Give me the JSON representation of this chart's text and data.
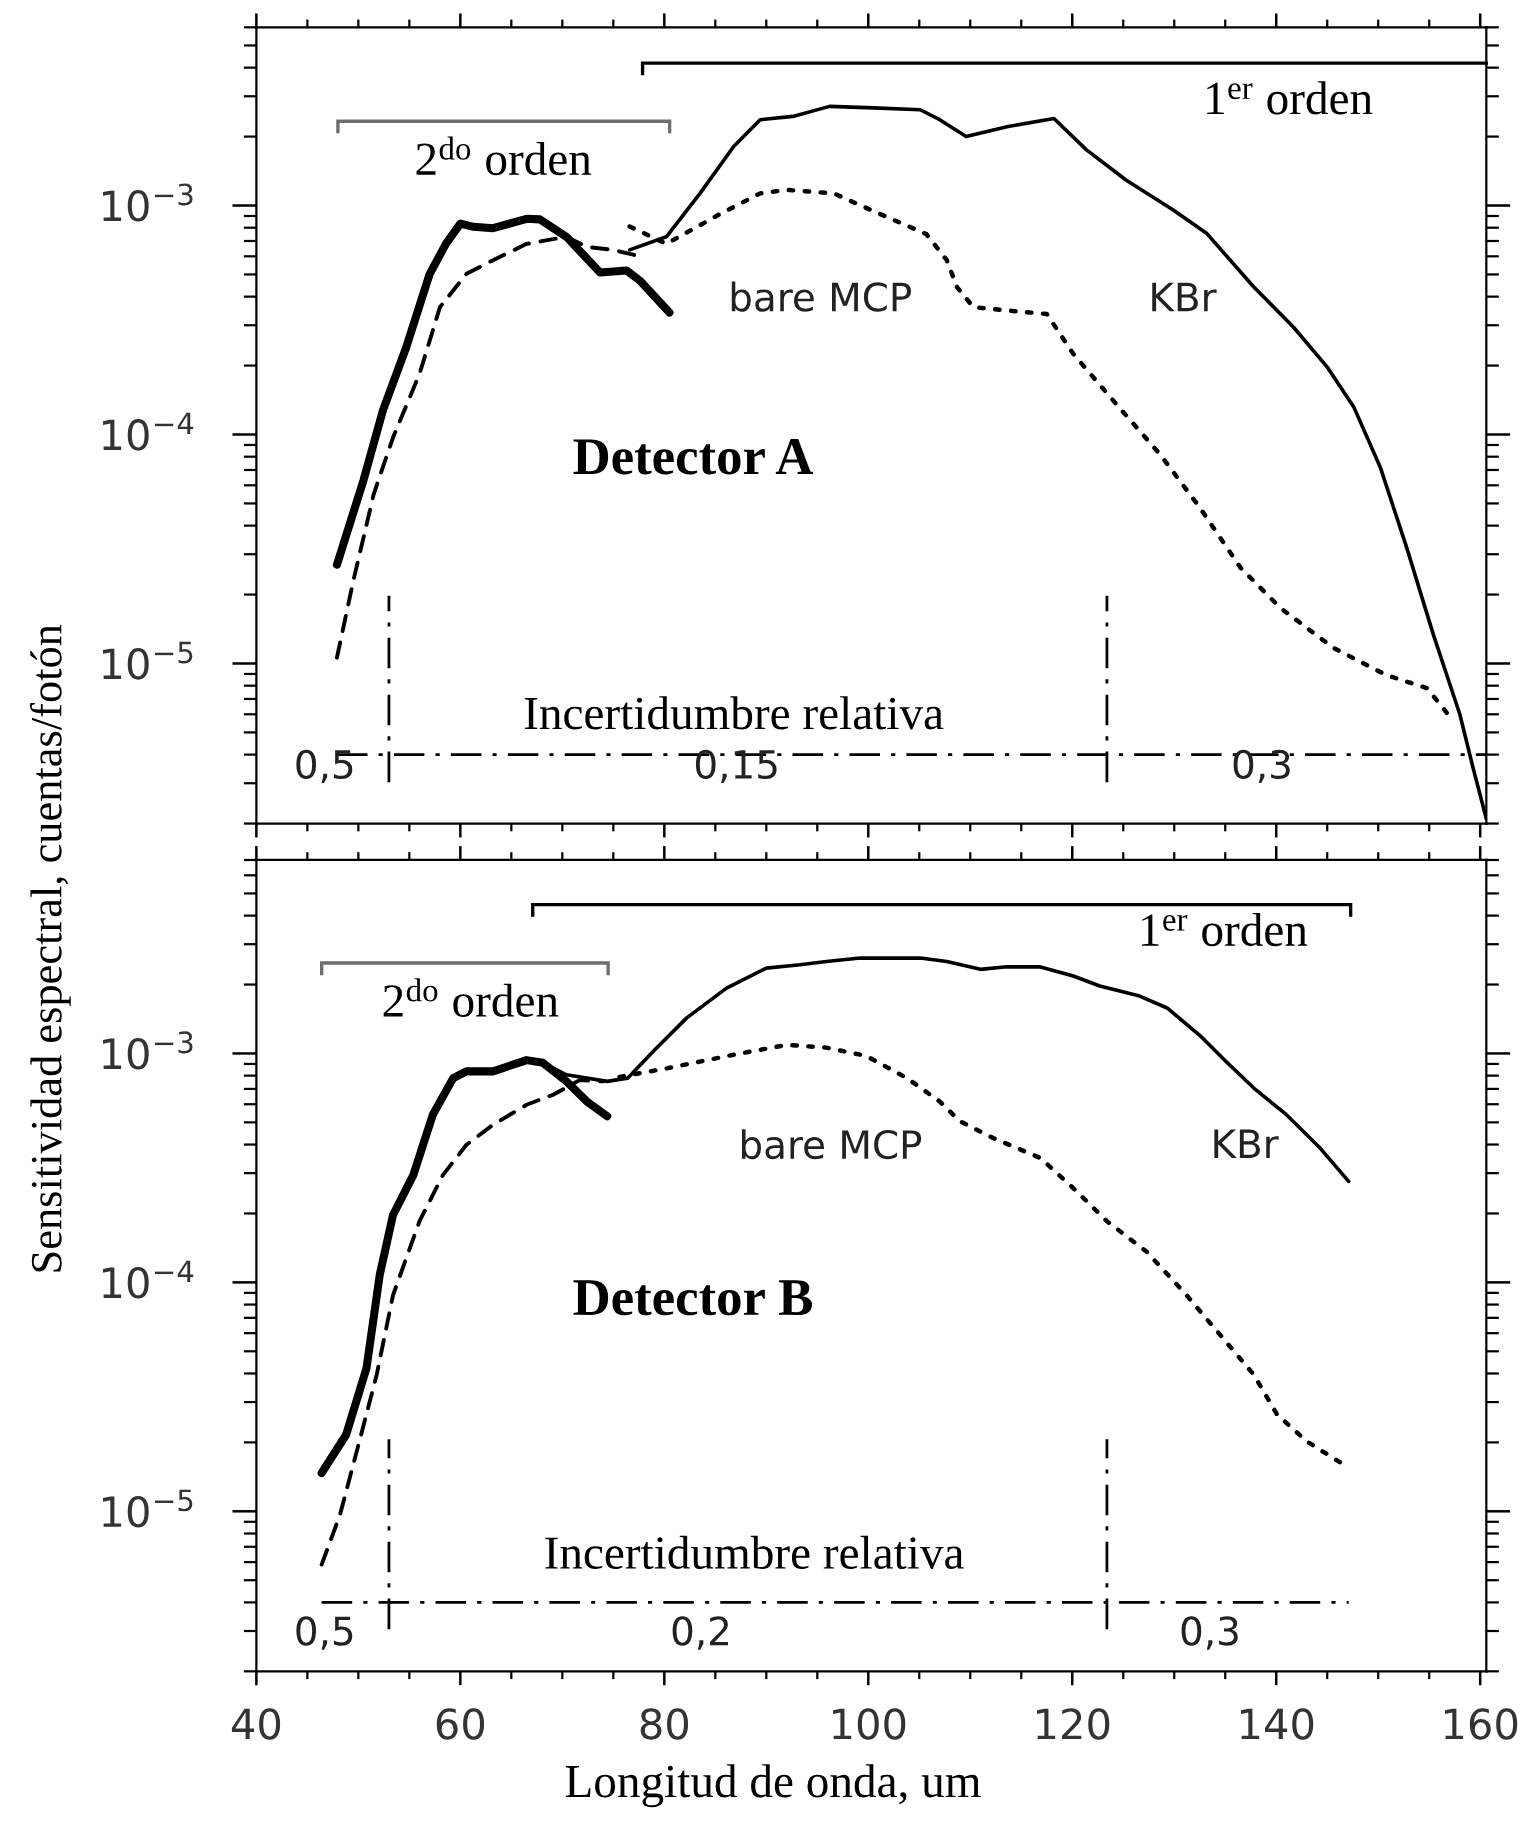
{
  "chart_data": [
    {
      "type": "line",
      "title": "Detector A",
      "log": true,
      "xlim": [
        40,
        160.6
      ],
      "ylim": [
        2e-06,
        0.006
      ],
      "xticks": [
        40,
        60,
        80,
        100,
        120,
        140,
        160
      ],
      "yticks": [
        {
          "value": 1e-05,
          "label": "10$^{−5}$"
        },
        {
          "value": 0.0001,
          "label": "10$^{−4}$"
        },
        {
          "value": 0.001,
          "label": "10$^{−3}$"
        }
      ],
      "tick_labels": "y",
      "series": [
        {
          "color": "#000000",
          "line_style": "solid",
          "x": [
            76.6,
            80.2,
            83.5,
            86.8,
            89.4,
            92.6,
            96.2,
            100.5,
            105.1,
            107.0,
            109.6,
            113.6,
            118.2,
            121.4,
            125.3,
            129.9,
            133.2,
            137.8,
            141.7,
            145.0,
            147.6,
            150.2,
            152.8,
            155.4,
            158.0,
            159.3,
            160.6
          ],
          "values": [
            0.00064,
            0.00073,
            0.00113,
            0.00181,
            0.00237,
            0.00245,
            0.00271,
            0.00267,
            0.00262,
            0.00237,
            0.002,
            0.00221,
            0.0024,
            0.00175,
            0.00129,
            0.000955,
            0.000754,
            0.000441,
            0.000294,
            0.000197,
            0.000132,
            7.2e-05,
            3.2e-05,
            1.34e-05,
            6e-06,
            3.5e-06,
            2.1e-06
          ]
        },
        {
          "color": "#000000",
          "line_style": "solid",
          "x": [
            47.9,
            50.5,
            52.4,
            54.7,
            57.0,
            58.6,
            60.0,
            61.3,
            63.2,
            66.5,
            67.8,
            70.4,
            73.7,
            76.3,
            77.6,
            80.5
          ],
          "values": [
            2.7e-05,
            6.3e-05,
            0.000127,
            0.000241,
            0.000503,
            0.000682,
            0.000834,
            0.000807,
            0.000796,
            0.000875,
            0.00087,
            0.00073,
            0.00051,
            0.00052,
            0.00047,
            0.000341
          ]
        },
        {
          "color": "#000000",
          "line_style": "dotted",
          "x": [
            76.6,
            80.2,
            85.5,
            89.4,
            92.0,
            96.6,
            101.1,
            105.7,
            107.7,
            108.7,
            110.3,
            113.6,
            117.5,
            120.1,
            124.0,
            128.6,
            132.5,
            136.5,
            140.4,
            145.6,
            150.8,
            154.8,
            157.1
          ],
          "values": [
            0.00081,
            0.00068,
            0.00092,
            0.00113,
            0.00117,
            0.00113,
            0.00092,
            0.00075,
            0.000577,
            0.00044,
            0.00036,
            0.000348,
            0.000336,
            0.000225,
            0.000141,
            8.2e-05,
            4.8e-05,
            2.62e-05,
            1.75e-05,
            1.17e-05,
            8.9e-06,
            7.8e-06,
            5.8e-06
          ]
        },
        {
          "color": "#000000",
          "line_style": "dashed",
          "x": [
            47.9,
            49.5,
            51.5,
            53.4,
            56.0,
            58.0,
            60.6,
            63.2,
            66.5,
            70.4,
            72.4,
            75.0,
            77.6
          ],
          "values": [
            1.06e-05,
            2.29e-05,
            5.48e-05,
            9.7e-05,
            0.000184,
            0.00036,
            0.000503,
            0.000577,
            0.00068,
            0.00073,
            0.00066,
            0.00064,
            0.0006
          ]
        }
      ],
      "ref_lines": [
        {
          "axis": "x",
          "value": 53,
          "line_style": "dashdot"
        },
        {
          "axis": "x",
          "value": 123.4,
          "line_style": "dashdot"
        },
        {
          "axis": "y",
          "value": 4e-06,
          "line_style": "dashdot"
        }
      ],
      "annotations": [
        "2$^{do}$ orden",
        "1$^{er}$ orden",
        "bare MCP",
        "KBr",
        "Incertidumbre relativa",
        "0,5",
        "0,15",
        "0,3"
      ]
    },
    {
      "type": "line",
      "title": "Detector B",
      "xlabel": "Longitud de onda, um",
      "ylabel": "Sensitividad espectral, cuentas/fotón",
      "log": true,
      "xlim": [
        40,
        160.6
      ],
      "ylim": [
        2e-06,
        0.007
      ],
      "xticks": [
        40,
        60,
        80,
        100,
        120,
        140,
        160
      ],
      "yticks": [
        {
          "value": 1e-05,
          "label": "10$^{−5}$"
        },
        {
          "value": 0.0001,
          "label": "10$^{−4}$"
        },
        {
          "value": 0.001,
          "label": "10$^{−3}$"
        }
      ],
      "series": [
        {
          "color": "#000000",
          "line_style": "solid",
          "x": [
            68.1,
            70.4,
            74.4,
            76.4,
            78.9,
            82.2,
            86.1,
            90.0,
            93.3,
            95.9,
            99.2,
            105.1,
            107.7,
            111.0,
            113.6,
            116.8,
            120.1,
            122.7,
            126.6,
            129.3,
            132.5,
            135.1,
            137.8,
            141.0,
            144.3,
            147.1
          ],
          "values": [
            0.00091,
            0.000807,
            0.000755,
            0.00078,
            0.00102,
            0.00143,
            0.00193,
            0.00236,
            0.00244,
            0.00252,
            0.00261,
            0.00261,
            0.00252,
            0.00233,
            0.00239,
            0.00239,
            0.00218,
            0.00197,
            0.00178,
            0.00158,
            0.0012,
            0.00092,
            0.000706,
            0.00054,
            0.000386,
            0.000276
          ]
        },
        {
          "color": "#000000",
          "line_style": "solid",
          "x": [
            46.4,
            48.8,
            50.8,
            52.1,
            53.4,
            55.4,
            57.3,
            59.3,
            60.6,
            63.2,
            66.5,
            68.1,
            70.4,
            72.4,
            74.4
          ],
          "values": [
            1.47e-05,
            2.16e-05,
            4.22e-05,
            0.000108,
            0.000197,
            0.000295,
            0.00054,
            0.00078,
            0.000835,
            0.000835,
            0.000935,
            0.00091,
            0.000755,
            0.000617,
            0.000532
          ]
        },
        {
          "color": "#000000",
          "line_style": "dotted",
          "x": [
            75.6,
            80.2,
            86.8,
            92.0,
            95.9,
            99.8,
            103.8,
            107.0,
            109.0,
            112.3,
            116.9,
            120.1,
            123.4,
            127.3,
            131.2,
            134.5,
            137.8,
            140.1,
            143.0,
            146.6
          ],
          "values": [
            0.00079,
            0.00086,
            0.000987,
            0.00109,
            0.00106,
            0.000975,
            0.00078,
            0.000617,
            0.000505,
            0.000426,
            0.000349,
            0.000258,
            0.000185,
            0.000136,
            8.8e-05,
            5.9e-05,
            3.95e-05,
            2.64e-05,
            2.02e-05,
            1.6e-05
          ]
        },
        {
          "color": "#000000",
          "line_style": "dashed",
          "x": [
            46.4,
            48.2,
            50.1,
            51.8,
            53.4,
            56.0,
            58.3,
            60.6,
            63.2,
            66.5,
            69.1,
            71.7,
            74.0
          ],
          "values": [
            5.85e-06,
            9.66e-06,
            2.02e-05,
            3.95e-05,
            8.8e-05,
            0.000185,
            0.000295,
            0.000399,
            0.000488,
            0.000597,
            0.00066,
            0.000765,
            0.000755
          ]
        }
      ],
      "ref_lines": [
        {
          "axis": "x",
          "value": 53,
          "line_style": "dashdot"
        },
        {
          "axis": "x",
          "value": 123.4,
          "line_style": "dashdot"
        },
        {
          "axis": "y",
          "value": 4e-06,
          "line_style": "dashdot"
        }
      ],
      "annotations": [
        "2$^{do}$ orden",
        "1$^{er}$ orden",
        "bare MCP",
        "KBr",
        "Incertidumbre relativa",
        "0,5",
        "0,2",
        "0,3"
      ]
    }
  ]
}
